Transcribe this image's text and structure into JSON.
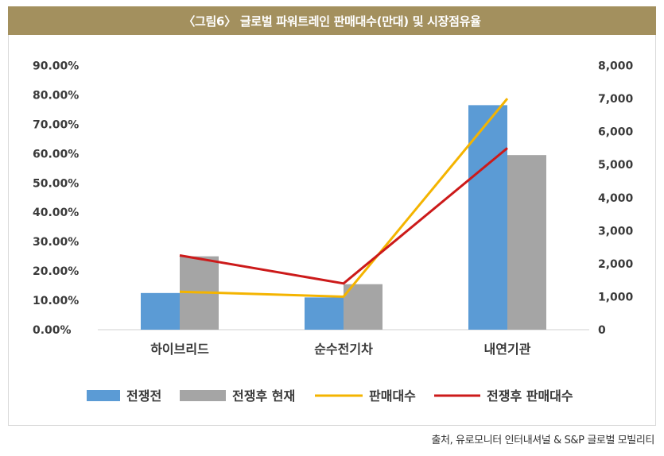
{
  "title": "〈그림6〉 글로벌 파워트레인 판매대수(만대) 및 시장점유율",
  "source": "출처, 유로모니터 인터내셔널 & S&P 글로벌 모빌리티",
  "chart_data": {
    "type": "bar",
    "categories": [
      "하이브리드",
      "순수전기차",
      "내연기관"
    ],
    "series": [
      {
        "name": "전쟁전",
        "kind": "bar",
        "axis": "left",
        "color": "#5b9bd5",
        "values": [
          12.5,
          11.0,
          76.5
        ]
      },
      {
        "name": "전쟁후 현재",
        "kind": "bar",
        "axis": "left",
        "color": "#a5a5a5",
        "values": [
          25.0,
          15.5,
          59.5
        ]
      },
      {
        "name": "판매대수",
        "kind": "line",
        "axis": "right",
        "color": "#f4b400",
        "values": [
          1150,
          1000,
          7000
        ]
      },
      {
        "name": "전쟁후 판매대수",
        "kind": "line",
        "axis": "right",
        "color": "#cc1a1a",
        "values": [
          2250,
          1400,
          5500
        ]
      }
    ],
    "y_left": {
      "min": 0,
      "max": 90,
      "ticks": [
        "0.00%",
        "10.00%",
        "20.00%",
        "30.00%",
        "40.00%",
        "50.00%",
        "60.00%",
        "70.00%",
        "80.00%",
        "90.00%"
      ]
    },
    "y_right": {
      "min": 0,
      "max": 8000,
      "ticks": [
        "0",
        "1,000",
        "2,000",
        "3,000",
        "4,000",
        "5,000",
        "6,000",
        "7,000",
        "8,000"
      ]
    },
    "legend": "bottom",
    "grid": false
  }
}
